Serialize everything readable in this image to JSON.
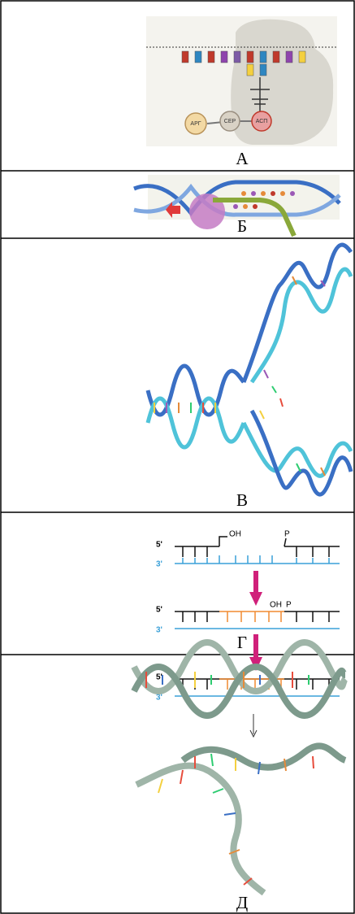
{
  "rows": [
    {
      "caption": "А",
      "labels": [
        "АРГ",
        "СЕР",
        "АСП"
      ]
    },
    {
      "caption": "Б"
    },
    {
      "caption": "В"
    },
    {
      "caption": "Г",
      "labels": [
        "5'",
        "3'",
        "OH",
        "P",
        "5'",
        "3'",
        "OH",
        "P",
        "5'",
        "3'"
      ]
    },
    {
      "caption": "Д"
    }
  ]
}
